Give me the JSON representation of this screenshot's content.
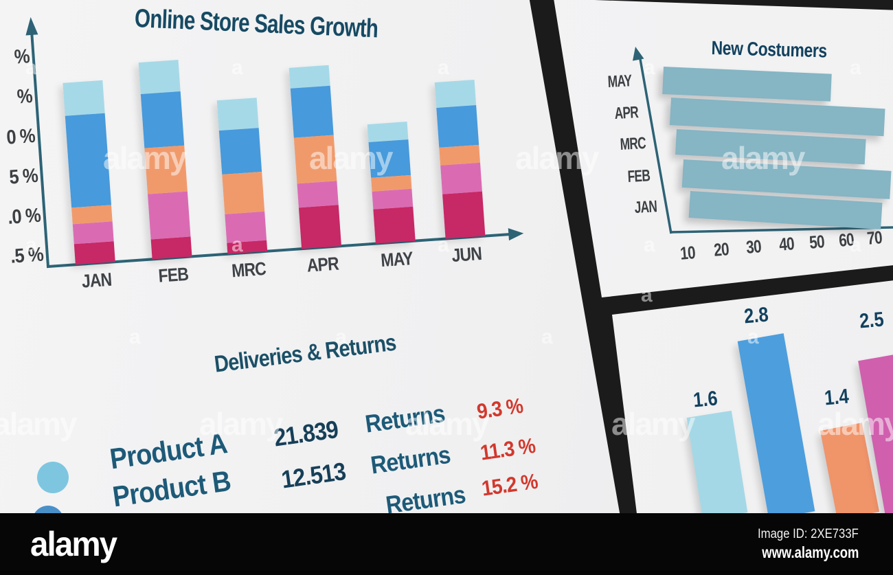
{
  "footer": {
    "brand": "alamy",
    "image_id": "Image ID: 2XE733F",
    "site": "www.alamy.com"
  },
  "watermark": {
    "brand": "alamy",
    "letter": "a"
  },
  "colors": {
    "background": "#1b1b1b",
    "card": "#f1f1f2",
    "heading_teal": "#164a63",
    "axis_teal": "#2d6375",
    "axis_text_gray": "#3c4043",
    "returns_red": "#d2382c"
  },
  "chart_data": [
    {
      "id": "sales",
      "type": "bar",
      "stacked": true,
      "title": "Online Store Sales Growth",
      "categories": [
        "JAN",
        "FEB",
        "MRC",
        "APR",
        "MAY",
        "JUN"
      ],
      "series": [
        {
          "name": "segment-bottom-crimson",
          "color": "#c72866",
          "values": [
            1.25,
            1.2,
            0.7,
            2.5,
            2.1,
            2.7
          ]
        },
        {
          "name": "segment-pink",
          "color": "#da6bb2",
          "values": [
            1.2,
            2.75,
            1.75,
            1.45,
            1.05,
            1.75
          ]
        },
        {
          "name": "segment-orange",
          "color": "#f09a6c",
          "values": [
            1.0,
            2.8,
            2.4,
            2.8,
            0.85,
            1.1
          ]
        },
        {
          "name": "segment-blue",
          "color": "#479adb",
          "values": [
            5.6,
            3.3,
            2.65,
            3.0,
            2.15,
            2.4
          ]
        },
        {
          "name": "segment-top-cyan",
          "color": "#a6d9e7",
          "values": [
            2.0,
            1.9,
            1.85,
            1.25,
            1.1,
            1.55
          ]
        }
      ],
      "ytick_labels_visible": [
        "%",
        "%",
        "0 %",
        "5 %",
        ".0 %",
        ".5 %"
      ],
      "ylabel": "",
      "xlabel": "",
      "legend": false,
      "note_units": "percent, axis labels clipped at image edge; values estimated"
    },
    {
      "id": "customers",
      "type": "bar",
      "orientation": "horizontal",
      "title": "New Costumers",
      "categories": [
        "MAY",
        "APR",
        "MRC",
        "FEB",
        "JAN"
      ],
      "values": [
        55,
        70,
        62,
        68,
        63
      ],
      "xticks": [
        10,
        20,
        30,
        40,
        50,
        60,
        70
      ],
      "xlim": [
        0,
        75
      ],
      "bar_color": "#86b5c4",
      "legend": false
    },
    {
      "id": "quarterly",
      "type": "bar",
      "title": "",
      "categories": [
        "",
        "",
        "",
        ""
      ],
      "values": [
        1.6,
        2.8,
        1.4,
        2.5
      ],
      "data_labels": [
        "1.6",
        "2.8",
        "1.4",
        "2.5"
      ],
      "bar_colors": [
        "#a5d8e6",
        "#4d9edd",
        "#f0946a",
        "#d05fae"
      ],
      "legend": false
    },
    {
      "id": "deliveries",
      "type": "table",
      "title": "Deliveries & Returns",
      "rows": [
        {
          "bullet_color": "#7ec6e0",
          "product": "Product A",
          "deliveries": "21.839",
          "returns_label": "Returns",
          "returns_pct": "9.3 %"
        },
        {
          "bullet_color": "#4a90c8",
          "product": "Product B",
          "deliveries": "12.513",
          "returns_label": "Returns",
          "returns_pct": "11.3 %"
        },
        {
          "bullet_color": "",
          "product": "",
          "deliveries": "",
          "returns_label": "Returns",
          "returns_pct": "15.2 %"
        }
      ]
    }
  ]
}
